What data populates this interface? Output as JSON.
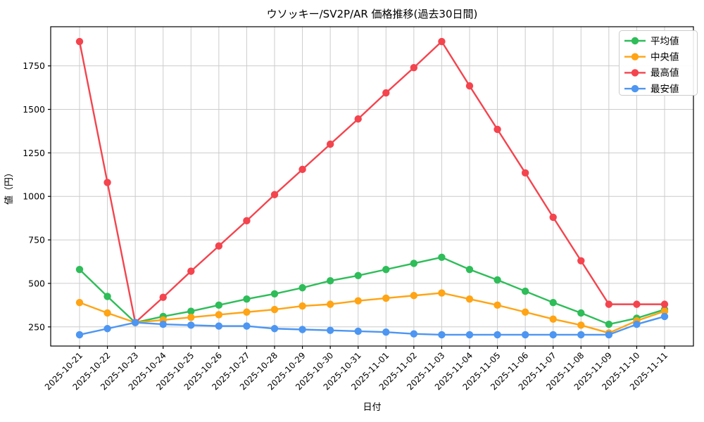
{
  "chart_data": {
    "type": "line",
    "title": "ウソッキー/SV2P/AR 価格推移(過去30日間)",
    "xlabel": "日付",
    "ylabel": "値（円）",
    "grid": true,
    "legend_position": "upper right",
    "ylim": [
      140,
      1975
    ],
    "yticks": [
      250,
      500,
      750,
      1000,
      1250,
      1500,
      1750
    ],
    "x": [
      "2025-10-21",
      "2025-10-22",
      "2025-10-23",
      "2025-10-24",
      "2025-10-25",
      "2025-10-26",
      "2025-10-27",
      "2025-10-28",
      "2025-10-29",
      "2025-10-30",
      "2025-10-31",
      "2025-11-01",
      "2025-11-02",
      "2025-11-03",
      "2025-11-04",
      "2025-11-05",
      "2025-11-06",
      "2025-11-07",
      "2025-11-08",
      "2025-11-09",
      "2025-11-10",
      "2025-11-11"
    ],
    "series": [
      {
        "key": "average",
        "name": "平均値",
        "color": "#2ebd59",
        "values": [
          580,
          425,
          275,
          310,
          340,
          375,
          410,
          440,
          475,
          515,
          545,
          580,
          615,
          650,
          580,
          520,
          455,
          390,
          330,
          265,
          300,
          350
        ]
      },
      {
        "key": "median",
        "name": "中央値",
        "color": "#ffa414",
        "values": [
          390,
          330,
          275,
          290,
          305,
          320,
          335,
          350,
          370,
          380,
          400,
          415,
          430,
          445,
          410,
          375,
          335,
          295,
          260,
          215,
          285,
          340
        ]
      },
      {
        "key": "max",
        "name": "最高値",
        "color": "#f4444e",
        "values": [
          1890,
          1080,
          275,
          420,
          570,
          715,
          860,
          1010,
          1155,
          1300,
          1445,
          1595,
          1740,
          1890,
          1635,
          1385,
          1135,
          880,
          630,
          380,
          380,
          380
        ]
      },
      {
        "key": "min",
        "name": "最安値",
        "color": "#4d96f2",
        "values": [
          205,
          240,
          275,
          265,
          260,
          255,
          255,
          240,
          235,
          230,
          225,
          220,
          210,
          205,
          205,
          205,
          205,
          205,
          205,
          205,
          265,
          310
        ]
      }
    ],
    "colors": {
      "grid": "#cccccc",
      "spine": "#000000",
      "background": "#ffffff"
    }
  }
}
